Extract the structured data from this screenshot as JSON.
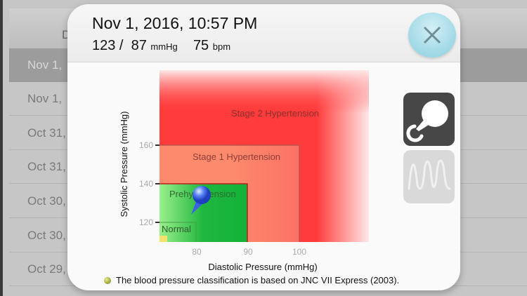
{
  "list": {
    "header": "D",
    "rows": [
      "Nov 1,",
      "Nov 1,",
      "Oct 31,",
      "Oct 31,",
      "Oct 30,",
      "Oct 30,",
      "Oct 29,"
    ],
    "selected_index": 0
  },
  "modal": {
    "title": "Nov 1, 2016, 10:57 PM",
    "systolic": "123 /",
    "diastolic": "87",
    "pressure_unit": "mmHg",
    "pulse": "75",
    "pulse_unit": "bpm",
    "close_icon": "close-x-icon",
    "side_buttons": [
      {
        "icon": "blood-pressure-bulb-icon",
        "active": true
      },
      {
        "icon": "pulse-wave-icon",
        "active": false
      }
    ],
    "note": "The blood pressure classification is based on JNC VII Express (2003)."
  },
  "chart": {
    "xlabel": "Diastolic Pressure (mmHg)",
    "ylabel": "Systolic Pressure (mmHg)",
    "xticks": [
      "80",
      "90",
      "100"
    ],
    "yticks": [
      "160",
      "140",
      "120"
    ],
    "zones": [
      "Stage 2 Hypertension",
      "Stage 1 Hypertension",
      "Prehypertension",
      "Normal"
    ],
    "colors": {
      "stage2": "#ff3b3b",
      "stage1": "#fd8a6c",
      "prehypertension": "#13b23a",
      "normal": "#5fd45f",
      "marker": "#3d6cf0"
    }
  }
}
